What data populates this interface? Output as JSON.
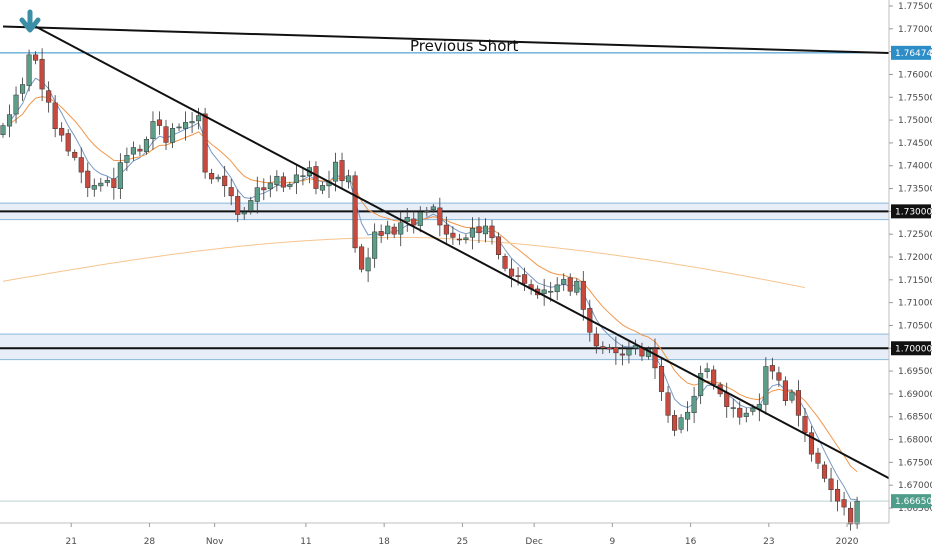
{
  "chart_data": {
    "type": "candlestick",
    "title": "",
    "xlabel": "",
    "ylabel": "",
    "ylim": [
      1.6615,
      1.7755
    ],
    "y_ticks": [
      "1.77500",
      "1.77000",
      "1.76500",
      "1.76000",
      "1.75500",
      "1.75000",
      "1.74500",
      "1.74000",
      "1.73500",
      "1.73000",
      "1.72500",
      "1.72000",
      "1.71500",
      "1.71000",
      "1.70500",
      "1.70000",
      "1.69500",
      "1.69000",
      "1.68500",
      "1.68000",
      "1.67500",
      "1.67000",
      "1.66500"
    ],
    "x_ticks": [
      "21",
      "28",
      "Nov",
      "11",
      "18",
      "25",
      "Dec",
      "9",
      "16",
      "23",
      "2020"
    ],
    "annotation": "Previous Short",
    "price_tags": [
      {
        "label": "1.76474",
        "value": 1.76474,
        "color": "#2d8ec7"
      },
      {
        "label": "1.73000",
        "value": 1.73,
        "color": "#111111"
      },
      {
        "label": "1.70000",
        "value": 1.7,
        "color": "#111111"
      },
      {
        "label": "1.66650",
        "value": 1.6665,
        "color": "#4e9c8a"
      }
    ],
    "horizontal_levels": [
      1.76474,
      1.73,
      1.7,
      1.6665
    ],
    "zones": [
      {
        "from": 1.7282,
        "to": 1.7318
      },
      {
        "from": 1.6975,
        "to": 1.7031
      }
    ],
    "colors": {
      "up": "#5c9e8a",
      "down": "#c84a3f",
      "ema_fast": "#7a99c4",
      "ema_slow": "#f0964a",
      "ema_long": "#f6c58f",
      "level_blue": "#2d8ec7"
    },
    "trendlines": [
      {
        "name": "upper",
        "x1": 0,
        "y1": 1.7705,
        "x2": 124,
        "y2": 1.7652
      },
      {
        "name": "descending",
        "x1": 5,
        "y1": 1.7705,
        "x2": 124,
        "y2": 1.6805
      }
    ],
    "close_series": [
      1.7488,
      1.7512,
      1.7555,
      1.7578,
      1.7643,
      1.7631,
      1.7568,
      1.7539,
      1.7481,
      1.7467,
      1.7432,
      1.7418,
      1.7386,
      1.7352,
      1.7357,
      1.7362,
      1.7368,
      1.7352,
      1.7407,
      1.7423,
      1.744,
      1.7432,
      1.7458,
      1.7497,
      1.7488,
      1.7451,
      1.7482,
      1.7485,
      1.7495,
      1.7497,
      1.751,
      1.7386,
      1.7371,
      1.7375,
      1.7356,
      1.7334,
      1.7293,
      1.7298,
      1.7324,
      1.7352,
      1.7347,
      1.7362,
      1.7377,
      1.7353,
      1.7359,
      1.738,
      1.7378,
      1.7396,
      1.735,
      1.7357,
      1.7365,
      1.7408,
      1.7367,
      1.7378,
      1.722,
      1.7173,
      1.7198,
      1.7255,
      1.7247,
      1.7268,
      1.725,
      1.7275,
      1.7287,
      1.727,
      1.7298,
      1.73,
      1.731,
      1.727,
      1.725,
      1.7243,
      1.7239,
      1.7242,
      1.7263,
      1.7253,
      1.7268,
      1.7242,
      1.7205,
      1.7175,
      1.7158,
      1.7158,
      1.7142,
      1.713,
      1.7117,
      1.7128,
      1.7125,
      1.7139,
      1.7151,
      1.7125,
      1.7147,
      1.7085,
      1.7035,
      1.7005,
      1.7,
      1.6998,
      1.699,
      1.6985,
      1.6998,
      1.7006,
      1.6983,
      1.6998,
      1.6957,
      1.6905,
      1.6853,
      1.682,
      1.6848,
      1.686,
      1.6895,
      1.6945,
      1.6955,
      1.692,
      1.69,
      1.6872,
      1.687,
      1.6849,
      1.6858,
      1.6869,
      1.6877,
      1.696,
      1.695,
      1.693,
      1.6885,
      1.6904,
      1.6853,
      1.6815,
      1.6768,
      1.6748,
      1.6715,
      1.669,
      1.6665,
      1.6652,
      1.6615,
      1.6665
    ]
  }
}
